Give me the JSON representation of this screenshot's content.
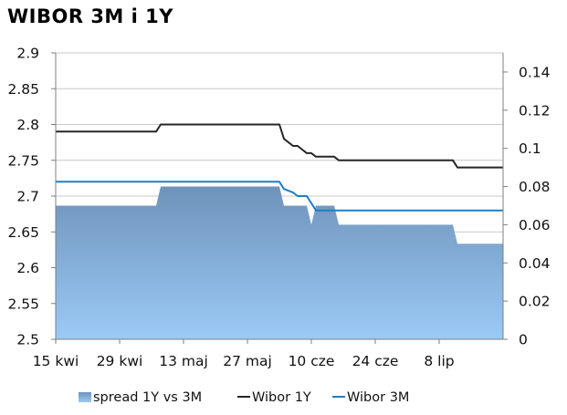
{
  "title": "WIBOR 3M i 1Y",
  "chart_data": {
    "type": "line",
    "title": "WIBOR 3M i 1Y",
    "left_axis": {
      "range": [
        2.5,
        2.9
      ],
      "ticks": [
        2.5,
        2.55,
        2.6,
        2.65,
        2.7,
        2.75,
        2.8,
        2.85,
        2.9
      ],
      "tick_labels": [
        "2.5",
        "2.55",
        "2.6",
        "2.65",
        "2.7",
        "2.75",
        "2.8",
        "2.85",
        "2.9"
      ]
    },
    "right_axis": {
      "range": [
        0,
        0.15
      ],
      "ticks": [
        0,
        0.02,
        0.04,
        0.06,
        0.08,
        0.1,
        0.12,
        0.14
      ],
      "tick_labels": [
        "0",
        "0.02",
        "0.04",
        "0.06",
        "0.08",
        "0.1",
        "0.12",
        "0.14"
      ]
    },
    "x_axis": {
      "range": [
        "2013-04-15",
        "2013-07-22"
      ],
      "ticks": [
        "2013-04-15",
        "2013-04-29",
        "2013-05-13",
        "2013-05-27",
        "2013-06-10",
        "2013-06-24",
        "2013-07-08"
      ],
      "tick_labels": [
        "15 kwi",
        "29 kwi",
        "13 maj",
        "27 maj",
        "10 cze",
        "24 cze",
        "8 lip"
      ]
    },
    "grid": "horizontal",
    "legend_position": "bottom",
    "series": [
      {
        "name": "spread 1Y vs 3M",
        "kind": "area",
        "axis": "right",
        "color": "#6f95bd",
        "color_bottom": "#99c8f4",
        "x": [
          "2013-04-15",
          "2013-05-07",
          "2013-05-08",
          "2013-06-03",
          "2013-06-04",
          "2013-06-06",
          "2013-06-07",
          "2013-06-09",
          "2013-06-10",
          "2013-06-11",
          "2013-06-12",
          "2013-06-15",
          "2013-06-16",
          "2013-07-11",
          "2013-07-12",
          "2013-07-22"
        ],
        "y": [
          0.07,
          0.07,
          0.08,
          0.08,
          0.07,
          0.07,
          0.07,
          0.07,
          0.06,
          0.07,
          0.07,
          0.07,
          0.06,
          0.06,
          0.05,
          0.05
        ]
      },
      {
        "name": "Wibor 1Y",
        "kind": "line",
        "axis": "left",
        "color": "#262626",
        "x": [
          "2013-04-15",
          "2013-05-07",
          "2013-05-08",
          "2013-06-03",
          "2013-06-04",
          "2013-06-06",
          "2013-06-07",
          "2013-06-08",
          "2013-06-09",
          "2013-06-10",
          "2013-06-11",
          "2013-06-15",
          "2013-06-16",
          "2013-07-11",
          "2013-07-12",
          "2013-07-22"
        ],
        "y": [
          2.79,
          2.79,
          2.8,
          2.8,
          2.78,
          2.77,
          2.77,
          2.765,
          2.76,
          2.76,
          2.755,
          2.755,
          2.75,
          2.75,
          2.74,
          2.74
        ]
      },
      {
        "name": "Wibor 3M",
        "kind": "line",
        "axis": "left",
        "color": "#1f7fc1",
        "x": [
          "2013-04-15",
          "2013-06-03",
          "2013-06-04",
          "2013-06-06",
          "2013-06-07",
          "2013-06-09",
          "2013-06-10",
          "2013-06-11",
          "2013-06-15",
          "2013-07-22"
        ],
        "y": [
          2.72,
          2.72,
          2.71,
          2.705,
          2.7,
          2.7,
          2.69,
          2.68,
          2.68,
          2.68
        ]
      }
    ]
  }
}
